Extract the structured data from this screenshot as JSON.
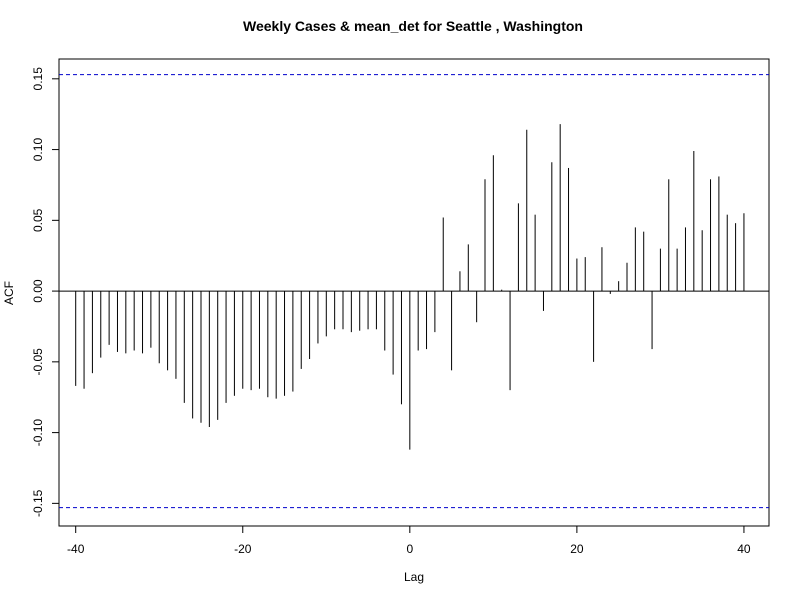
{
  "chart_data": {
    "type": "bar",
    "title": "Weekly Cases & mean_det for Seattle , Washington",
    "xlabel": "Lag",
    "ylabel": "ACF",
    "xlim": [
      -42,
      43
    ],
    "ylim": [
      -0.166,
      0.164
    ],
    "x_ticks": [
      -40,
      -20,
      0,
      20,
      40
    ],
    "x_tick_labels": [
      "-40",
      "-20",
      "0",
      "20",
      "40"
    ],
    "y_ticks": [
      -0.15,
      -0.1,
      -0.05,
      0.0,
      0.05,
      0.1,
      0.15
    ],
    "y_tick_labels": [
      "-0.15",
      "-0.10",
      "-0.05",
      "0.00",
      "0.05",
      "0.10",
      "0.15"
    ],
    "confidence_bounds": [
      0.153,
      -0.153
    ],
    "grid": false,
    "colors": {
      "bars": "#000000",
      "bounds": "#0000cc",
      "zero_line": "#000000"
    },
    "x": [
      -40,
      -39,
      -38,
      -37,
      -36,
      -35,
      -34,
      -33,
      -32,
      -31,
      -30,
      -29,
      -28,
      -27,
      -26,
      -25,
      -24,
      -23,
      -22,
      -21,
      -20,
      -19,
      -18,
      -17,
      -16,
      -15,
      -14,
      -13,
      -12,
      -11,
      -10,
      -9,
      -8,
      -7,
      -6,
      -5,
      -4,
      -3,
      -2,
      -1,
      0,
      1,
      2,
      3,
      4,
      5,
      6,
      7,
      8,
      9,
      10,
      11,
      12,
      13,
      14,
      15,
      16,
      17,
      18,
      19,
      20,
      21,
      22,
      23,
      24,
      25,
      26,
      27,
      28,
      29,
      30,
      31,
      32,
      33,
      34,
      35,
      36,
      37,
      38,
      39,
      40
    ],
    "values": [
      -0.067,
      -0.069,
      -0.058,
      -0.047,
      -0.038,
      -0.043,
      -0.044,
      -0.042,
      -0.044,
      -0.04,
      -0.051,
      -0.056,
      -0.062,
      -0.079,
      -0.09,
      -0.093,
      -0.096,
      -0.091,
      -0.079,
      -0.074,
      -0.069,
      -0.07,
      -0.069,
      -0.075,
      -0.076,
      -0.074,
      -0.071,
      -0.055,
      -0.048,
      -0.037,
      -0.032,
      -0.027,
      -0.027,
      -0.029,
      -0.028,
      -0.027,
      -0.027,
      -0.042,
      -0.059,
      -0.08,
      -0.112,
      -0.042,
      -0.041,
      -0.029,
      0.052,
      -0.056,
      0.014,
      0.033,
      -0.022,
      0.079,
      0.096,
      0.001,
      -0.07,
      0.062,
      0.114,
      0.054,
      -0.014,
      0.091,
      0.118,
      0.087,
      0.023,
      0.024,
      -0.05,
      0.031,
      -0.002,
      0.007,
      0.02,
      0.045,
      0.042,
      -0.041,
      0.03,
      0.079,
      0.03,
      0.045,
      0.099,
      0.043,
      0.079,
      0.081,
      0.054,
      0.048,
      0.055
    ]
  }
}
